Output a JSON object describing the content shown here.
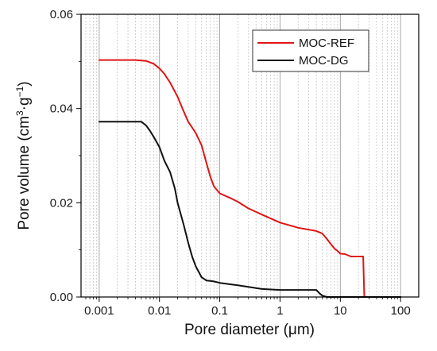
{
  "chart_data": {
    "type": "line",
    "title": "",
    "xlabel": "Pore diameter (μm)",
    "ylabel": "Pore volume (cm³·g⁻¹)",
    "ylabel_parts": {
      "main": "Pore volume (cm",
      "sup1": "3",
      "mid": "·g",
      "sup2": "−1",
      "end": ")"
    },
    "x_scale": "log",
    "xlim": [
      0.0005,
      200
    ],
    "ylim": [
      0,
      0.06
    ],
    "x_ticks": [
      0.001,
      0.01,
      0.1,
      1,
      10,
      100
    ],
    "x_tick_labels": [
      "0.001",
      "0.01",
      "0.1",
      "1",
      "10",
      "100"
    ],
    "y_ticks": [
      0,
      0.02,
      0.04,
      0.06
    ],
    "y_tick_labels": [
      "0.00",
      "0.02",
      "0.04",
      "0.06"
    ],
    "grid": true,
    "legend_position": "top-right",
    "series": [
      {
        "name": "MOC-REF",
        "color": "#e01414",
        "x": [
          0.001,
          0.002,
          0.004,
          0.006,
          0.008,
          0.01,
          0.012,
          0.015,
          0.02,
          0.025,
          0.03,
          0.04,
          0.05,
          0.06,
          0.07,
          0.08,
          0.1,
          0.15,
          0.2,
          0.3,
          0.5,
          1,
          2,
          3,
          4,
          5,
          6,
          7,
          8,
          9,
          10,
          12,
          15,
          20,
          24,
          25,
          26,
          30,
          50,
          100
        ],
        "y": [
          0.0503,
          0.0503,
          0.0503,
          0.0501,
          0.0495,
          0.0485,
          0.0474,
          0.0455,
          0.0425,
          0.0395,
          0.0372,
          0.0348,
          0.0322,
          0.0285,
          0.0255,
          0.0235,
          0.022,
          0.021,
          0.0202,
          0.0188,
          0.0175,
          0.0158,
          0.0147,
          0.0143,
          0.014,
          0.0135,
          0.0123,
          0.0112,
          0.0103,
          0.0098,
          0.0092,
          0.0091,
          0.0086,
          0.0086,
          0.0086,
          0.0,
          0.0,
          0.0,
          0.0,
          0.0
        ]
      },
      {
        "name": "MOC-DG",
        "color": "#111111",
        "x": [
          0.001,
          0.002,
          0.004,
          0.005,
          0.006,
          0.007,
          0.008,
          0.01,
          0.012,
          0.015,
          0.018,
          0.02,
          0.025,
          0.03,
          0.035,
          0.04,
          0.05,
          0.06,
          0.07,
          0.08,
          0.1,
          0.2,
          0.5,
          1,
          2,
          3,
          4,
          4.5,
          5,
          6,
          10,
          20,
          50,
          100
        ],
        "y": [
          0.0372,
          0.0372,
          0.0372,
          0.0372,
          0.0364,
          0.0352,
          0.034,
          0.0318,
          0.029,
          0.0265,
          0.023,
          0.02,
          0.0155,
          0.0115,
          0.0085,
          0.0065,
          0.0042,
          0.0035,
          0.0034,
          0.0033,
          0.003,
          0.0025,
          0.0017,
          0.0015,
          0.0015,
          0.0015,
          0.0015,
          0.0008,
          0.0003,
          0.0,
          0.0,
          0.0,
          0.0,
          0.0
        ]
      }
    ]
  }
}
